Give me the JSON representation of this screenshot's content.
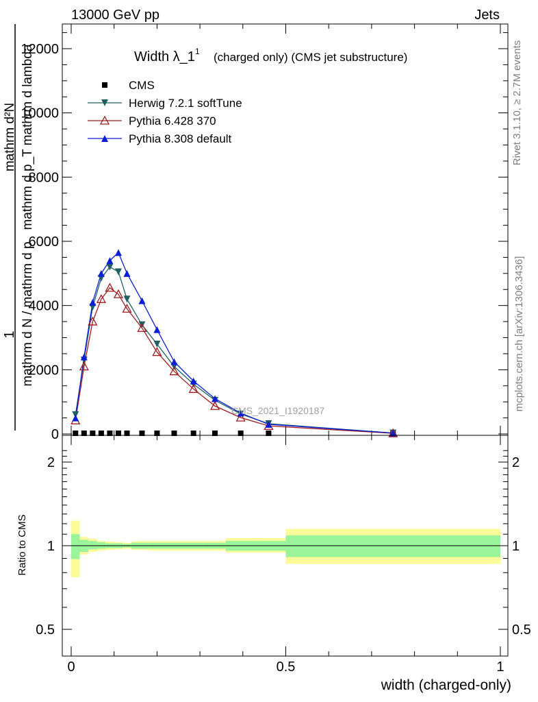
{
  "header": {
    "left": "13000 GeV pp",
    "right": "Jets"
  },
  "side_labels": {
    "top": "Rivet 3.1.10, ≥ 2.7M events",
    "bottom": "mcplots.cern.ch [arXiv:1306.3436]"
  },
  "watermark": "CMS_2021_I1920187",
  "chart_data": [
    {
      "type": "line",
      "title": "Width λ_1",
      "title_sup": "1",
      "subtitle": "(charged only) (CMS jet substructure)",
      "ylabel": {
        "prefix": "1",
        "denominator": "mathrm d N / mathrm d p",
        "numerator": "mathrm d",
        "numerator_sup": "2",
        "numerator_rest": "N",
        "lower": "mathrm d p",
        "lower_sub": "T",
        "lower_rest": "mathrm d lambda",
        "lines": [
          "1",
          "mathrm d N / mathrm d p",
          "mathrm d²N",
          "mathrm d p_T mathrm d lambda"
        ]
      },
      "ylim": [
        0,
        12700
      ],
      "xlim": [
        -0.02,
        1.0
      ],
      "yticks": [
        0,
        2000,
        4000,
        6000,
        8000,
        10000,
        12000
      ],
      "ytick_labels": [
        "0",
        "2000",
        "4000",
        "6000",
        "8000",
        "10000",
        "12000"
      ],
      "legend_position": "top-left",
      "series": [
        {
          "name": "CMS",
          "color": "#000000",
          "marker": "square",
          "x": [
            0.01,
            0.03,
            0.05,
            0.07,
            0.09,
            0.11,
            0.13,
            0.165,
            0.2,
            0.24,
            0.285,
            0.335,
            0.395,
            0.46,
            0.75
          ],
          "y": [
            0,
            0,
            0,
            0,
            0,
            0,
            0,
            0,
            0,
            0,
            0,
            0,
            0,
            0,
            0
          ]
        },
        {
          "name": "Herwig 7.2.1 softTune",
          "color": "#1f5f63",
          "marker": "triangle-down",
          "x": [
            0.01,
            0.03,
            0.05,
            0.07,
            0.09,
            0.11,
            0.13,
            0.165,
            0.2,
            0.24,
            0.285,
            0.335,
            0.395,
            0.46,
            0.75
          ],
          "y": [
            600,
            2300,
            3950,
            4850,
            5200,
            5050,
            4200,
            3400,
            2800,
            2100,
            1550,
            1050,
            620,
            320,
            30
          ]
        },
        {
          "name": "Pythia 6.428 370",
          "color": "#a01c20",
          "marker": "triangle-open",
          "x": [
            0.01,
            0.03,
            0.05,
            0.07,
            0.09,
            0.11,
            0.13,
            0.165,
            0.2,
            0.24,
            0.285,
            0.335,
            0.395,
            0.46,
            0.75
          ],
          "y": [
            420,
            2100,
            3500,
            4200,
            4550,
            4350,
            3900,
            3300,
            2550,
            1950,
            1400,
            870,
            510,
            250,
            20
          ]
        },
        {
          "name": "Pythia 8.308 default",
          "color": "#0a1ed7",
          "marker": "triangle-up",
          "x": [
            0.01,
            0.03,
            0.05,
            0.07,
            0.09,
            0.11,
            0.13,
            0.165,
            0.2,
            0.24,
            0.285,
            0.335,
            0.395,
            0.46,
            0.75
          ],
          "y": [
            500,
            2400,
            4100,
            5000,
            5400,
            5650,
            5000,
            4150,
            3250,
            2250,
            1650,
            1100,
            650,
            300,
            30
          ]
        }
      ]
    },
    {
      "type": "area",
      "ylabel": "Ratio to CMS",
      "xlabel": "width (charged-only)",
      "ylim": [
        0.4,
        2.3
      ],
      "xlim": [
        -0.02,
        1.0
      ],
      "yticks": [
        0.5,
        1,
        2
      ],
      "ytick_labels": [
        "0.5",
        "1",
        "2"
      ],
      "xticks": [
        0,
        0.5,
        1
      ],
      "xtick_labels": [
        "0",
        "0.5",
        "1"
      ],
      "bands": {
        "edges": [
          0.0,
          0.02,
          0.04,
          0.06,
          0.08,
          0.1,
          0.12,
          0.14,
          0.15,
          0.18,
          0.22,
          0.26,
          0.31,
          0.36,
          0.43,
          0.5,
          1.0
        ],
        "green_color": "#9af59a",
        "yellow_color": "#fbfb9a",
        "green_lo": [
          0.895,
          0.95,
          0.97,
          0.975,
          0.98,
          0.98,
          0.985,
          0.975,
          0.975,
          0.975,
          0.975,
          0.975,
          0.975,
          0.96,
          0.96,
          0.91
        ],
        "green_hi": [
          1.1,
          1.05,
          1.04,
          1.03,
          1.02,
          1.02,
          1.015,
          1.025,
          1.025,
          1.025,
          1.025,
          1.025,
          1.025,
          1.04,
          1.04,
          1.09
        ],
        "yellow_lo": [
          0.77,
          0.93,
          0.95,
          0.96,
          0.965,
          0.97,
          0.975,
          0.965,
          0.965,
          0.96,
          0.96,
          0.96,
          0.96,
          0.945,
          0.945,
          0.86
        ],
        "yellow_hi": [
          1.23,
          1.075,
          1.06,
          1.04,
          1.035,
          1.03,
          1.025,
          1.035,
          1.04,
          1.04,
          1.04,
          1.04,
          1.04,
          1.065,
          1.065,
          1.15
        ]
      },
      "reference_line": 1
    }
  ]
}
